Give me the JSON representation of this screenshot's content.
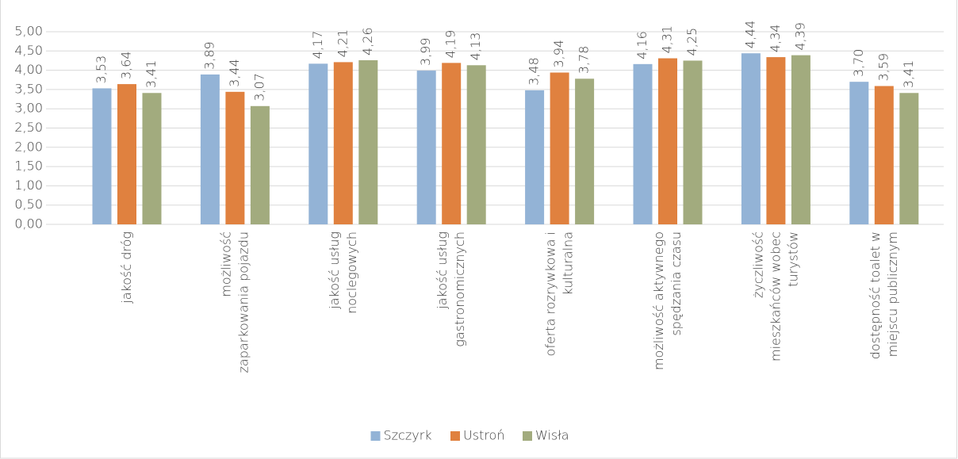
{
  "chart_data": {
    "type": "bar",
    "categories": [
      "jakość dróg",
      "możliwość zaparkowania pojazdu",
      "jakość usług noclegowych",
      "jakość usług gastronomicznych",
      "oferta rozrywkowa i kulturalna",
      "możliwość aktywnego spędzania czasu",
      "życzliwość mieszkańców wobec turystów",
      "dostępność toalet w miejscu publicznym"
    ],
    "series": [
      {
        "name": "Szczyrk",
        "color": "#93b3d6",
        "values": [
          3.53,
          3.89,
          4.17,
          3.99,
          3.48,
          4.16,
          4.44,
          3.7
        ],
        "value_labels": [
          "3,53",
          "3,89",
          "4,17",
          "3,99",
          "3,48",
          "4,16",
          "4,44",
          "3,70"
        ]
      },
      {
        "name": "Ustroń",
        "color": "#e0813f",
        "values": [
          3.64,
          3.44,
          4.21,
          4.19,
          3.94,
          4.31,
          4.34,
          3.59
        ],
        "value_labels": [
          "3,64",
          "3,44",
          "4,21",
          "4,19",
          "3,94",
          "4,31",
          "4,34",
          "3,59"
        ]
      },
      {
        "name": "Wisła",
        "color": "#a2ab7e",
        "values": [
          3.41,
          3.07,
          4.26,
          4.13,
          3.78,
          4.25,
          4.39,
          3.41
        ],
        "value_labels": [
          "3,41",
          "3,07",
          "4,26",
          "4,13",
          "3,78",
          "4,25",
          "4,39",
          "3,41"
        ]
      }
    ],
    "ylim": [
      0,
      5
    ],
    "yticks": [
      {
        "value": 0,
        "label": "0,00"
      },
      {
        "value": 0.5,
        "label": "0,50"
      },
      {
        "value": 1,
        "label": "1,00"
      },
      {
        "value": 1.5,
        "label": "1,50"
      },
      {
        "value": 2,
        "label": "2,00"
      },
      {
        "value": 2.5,
        "label": "2,50"
      },
      {
        "value": 3,
        "label": "3,00"
      },
      {
        "value": 3.5,
        "label": "3,50"
      },
      {
        "value": 4,
        "label": "4,00"
      },
      {
        "value": 4.5,
        "label": "4,50"
      },
      {
        "value": 5,
        "label": "5,00"
      }
    ],
    "grid": true,
    "legend": "bottom"
  }
}
